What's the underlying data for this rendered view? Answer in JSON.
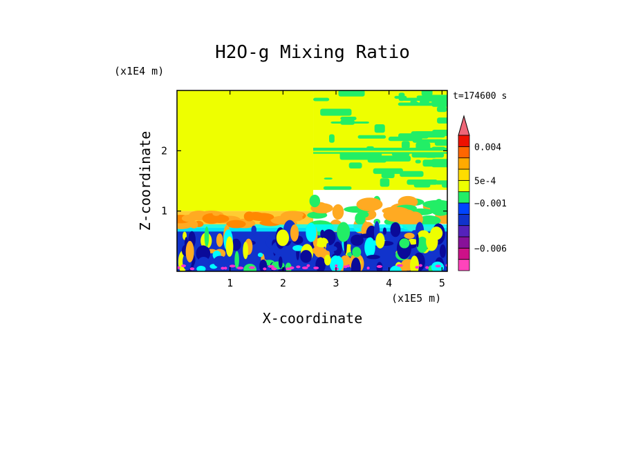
{
  "chart_data": {
    "type": "heatmap",
    "title": "H2O-g Mixing Ratio",
    "xlabel": "X-coordinate",
    "ylabel": "Z-coordinate",
    "x_unit": "(x1E5 m)",
    "y_unit": "(x1E4 m)",
    "time_label": "t=174600 s",
    "xlim": [
      0,
      5.1
    ],
    "ylim": [
      0,
      3.0
    ],
    "x_ticks": [
      {
        "value": 1,
        "label": "1"
      },
      {
        "value": 2,
        "label": "2"
      },
      {
        "value": 3,
        "label": "3"
      },
      {
        "value": 4,
        "label": "4"
      },
      {
        "value": 5,
        "label": "5"
      }
    ],
    "y_ticks": [
      {
        "value": 1,
        "label": "1"
      },
      {
        "value": 2,
        "label": "2"
      }
    ],
    "colorbar": {
      "levels": [
        {
          "color": "#ff44bb"
        },
        {
          "color": "#cc1188"
        },
        {
          "color": "#881199"
        },
        {
          "color": "#5522bb"
        },
        {
          "color": "#1133cc"
        },
        {
          "color": "#0044ff"
        },
        {
          "color": "#22ee66"
        },
        {
          "color": "#eeff00"
        },
        {
          "color": "#ffdd00"
        },
        {
          "color": "#ffaa00"
        },
        {
          "color": "#ff6600"
        },
        {
          "color": "#ee1100"
        },
        {
          "color": "#ee6677"
        }
      ],
      "labels": [
        {
          "text": "0.004",
          "level": 11
        },
        {
          "text": "5e-4",
          "level": 8
        },
        {
          "text": "−0.001",
          "level": 6
        },
        {
          "text": "−0.006",
          "level": 2
        }
      ]
    },
    "field_regions": [
      {
        "name": "upper-left-uniform",
        "x": [
          0,
          2.57
        ],
        "z": [
          1.0,
          3.0
        ],
        "color": "#eeff00"
      },
      {
        "name": "upper-right-background",
        "x": [
          2.57,
          5.1
        ],
        "z": [
          1.35,
          3.0
        ],
        "color": "#eeff00"
      },
      {
        "name": "left-moist-band",
        "x": [
          0,
          2.57
        ],
        "z": [
          0.72,
          1.0
        ],
        "color": "#ffcc33"
      },
      {
        "name": "boundary-layer",
        "x": [
          0,
          5.1
        ],
        "z": [
          0,
          0.72
        ],
        "color": "#1133cc"
      }
    ],
    "palette": {
      "yellow": "#eeff00",
      "green": "#22ee66",
      "cyan": "#00ffff",
      "orange": "#ffaa22",
      "blue": "#1133cc",
      "darkblue": "#0a0a99",
      "magenta": "#ff33cc"
    }
  }
}
